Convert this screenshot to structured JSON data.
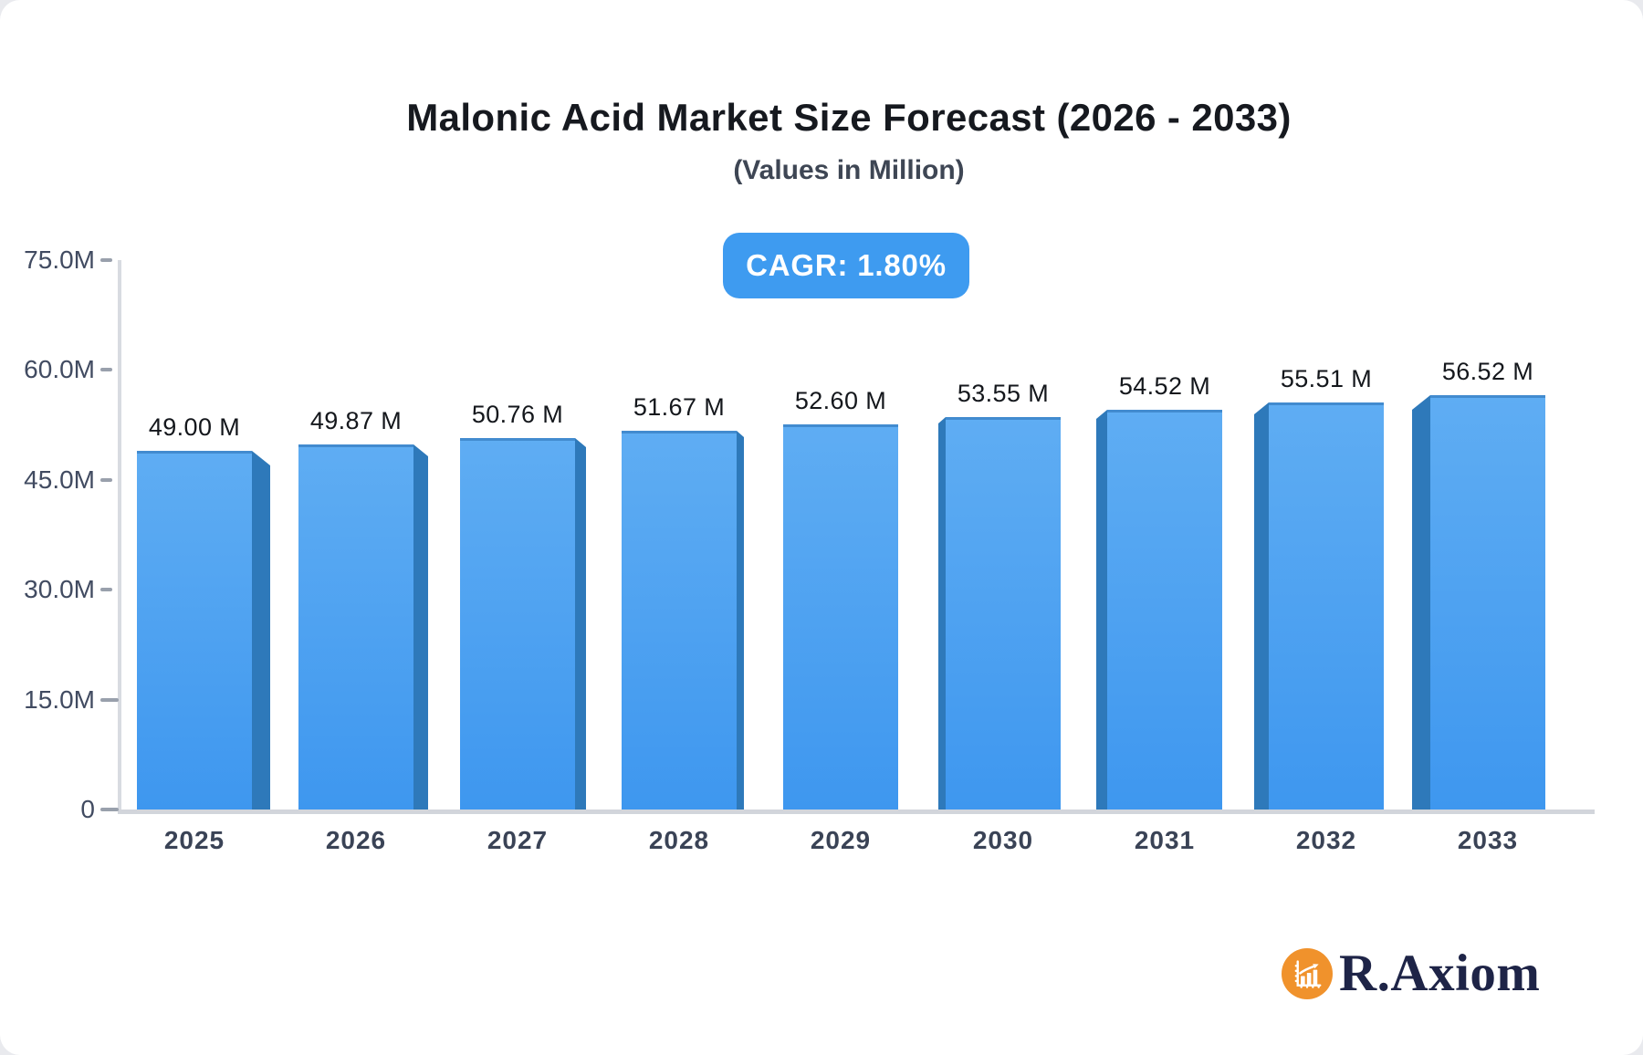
{
  "page": {
    "background": "#e9eaee",
    "card_background": "#ffffff"
  },
  "header": {
    "title": "Malonic Acid Market Size Forecast (2026 - 2033)",
    "subtitle": "(Values in Million)",
    "cagr_label": "CAGR: 1.80%",
    "badge_color": "#3e9bf0"
  },
  "chart_data": {
    "type": "bar",
    "title": "Malonic Acid Market Size Forecast (2026 - 2033)",
    "subtitle": "(Values in Million)",
    "cagr_percent": "1.80%",
    "categories": [
      "2025",
      "2026",
      "2027",
      "2028",
      "2029",
      "2030",
      "2031",
      "2032",
      "2033"
    ],
    "values": [
      49.0,
      49.87,
      50.76,
      51.67,
      52.6,
      53.55,
      54.52,
      55.51,
      56.52
    ],
    "value_labels": [
      "49.00 M",
      "49.87 M",
      "50.76 M",
      "51.67 M",
      "52.60 M",
      "53.55 M",
      "54.52 M",
      "55.51 M",
      "56.52 M"
    ],
    "unit": "M",
    "xlabel": "",
    "ylabel": "",
    "ylim": [
      0,
      75
    ],
    "yticks": [
      {
        "label": "75.0M",
        "value": 75
      },
      {
        "label": "60.0M",
        "value": 60
      },
      {
        "label": "45.0M",
        "value": 45
      },
      {
        "label": "30.0M",
        "value": 30
      },
      {
        "label": "15.0M",
        "value": 15
      },
      {
        "label": "0",
        "value": 0
      }
    ],
    "grid": false,
    "legend": false,
    "bar_style": "3d-extruded-perspective",
    "bar_face_top_color": "#5fadf3",
    "bar_face_bottom_color": "#3e97ef",
    "bar_side_color": "#2e79ba",
    "axis_line_color": "#d8dbe1",
    "tick_label_color": "#414b61",
    "x_label_color": "#3a4356",
    "value_label_color": "#14171c"
  },
  "logo": {
    "brand": "R.Axiom",
    "icon": "bar-chart-growth-icon",
    "icon_bg_color": "#f0922c",
    "text_color": "#1e2447"
  }
}
